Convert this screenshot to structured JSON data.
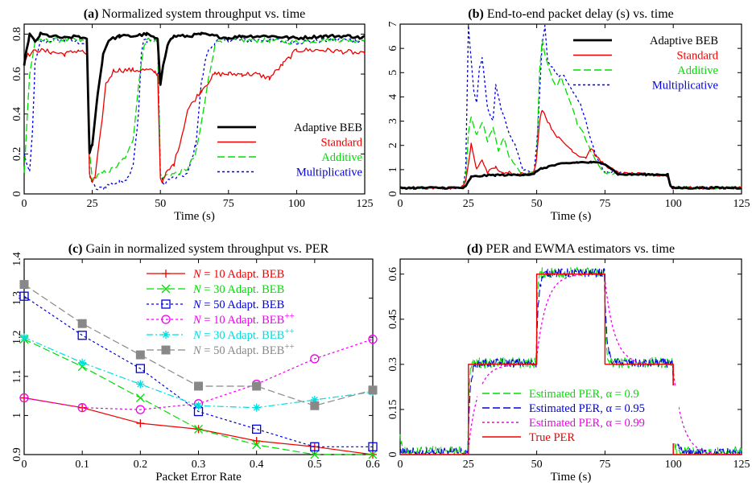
{
  "panels": {
    "a": {
      "label": "(a)",
      "title": "Normalized system throughput vs. time",
      "xlabel": "Time (s)",
      "ylabel": "",
      "xlim": [
        0,
        125
      ],
      "ylim": [
        0,
        0.85
      ],
      "xticks": [
        "0",
        "25",
        "50",
        "75",
        "100",
        "125"
      ],
      "yticks": [
        "0",
        "0.2",
        "0.4",
        "0.6",
        "0.8"
      ],
      "legend_position": "lower-right"
    },
    "b": {
      "label": "(b)",
      "title": "End-to-end packet delay (s) vs. time",
      "xlabel": "Time (s)",
      "ylabel": "",
      "xlim": [
        0,
        125
      ],
      "ylim": [
        0,
        7
      ],
      "xticks": [
        "0",
        "25",
        "50",
        "75",
        "100",
        "125"
      ],
      "yticks": [
        "0",
        "1",
        "2",
        "3",
        "4",
        "5",
        "6",
        "7"
      ],
      "legend_position": "top-right"
    },
    "c": {
      "label": "(c)",
      "title": "Gain in normalized system throughput vs. PER",
      "xlabel": "Packet Error Rate",
      "ylabel": "",
      "xlim": [
        0,
        0.6
      ],
      "ylim": [
        0.9,
        1.4
      ],
      "xticks": [
        "0",
        "0.1",
        "0.2",
        "0.3",
        "0.4",
        "0.5",
        "0.6"
      ],
      "yticks": [
        "0.9",
        "1",
        "1.1",
        "1.2",
        "1.3",
        "1.4"
      ],
      "legend_position": "top-center"
    },
    "d": {
      "label": "(d)",
      "title": "PER and EWMA estimators vs. time",
      "xlabel": "Time (s)",
      "ylabel": "",
      "xlim": [
        0,
        125
      ],
      "ylim": [
        0,
        0.65
      ],
      "xticks": [
        "0",
        "25",
        "50",
        "75",
        "100",
        "125"
      ],
      "yticks": [
        "0",
        "0.15",
        "0.3",
        "0.45",
        "0.6"
      ],
      "legend_position": "lower-center"
    }
  },
  "chart_data": [
    {
      "panel": "a",
      "type": "line",
      "title": "(a) Normalized system throughput vs. time",
      "xlabel": "Time (s)",
      "xlim": [
        0,
        125
      ],
      "ylim": [
        0,
        0.85
      ],
      "series": [
        {
          "name": "Adaptive BEB",
          "color": "#000000",
          "dash": "solid",
          "x": [
            0,
            2,
            4,
            6,
            10,
            15,
            20,
            23,
            24,
            25,
            27,
            29,
            31,
            35,
            40,
            45,
            48,
            49,
            50,
            51,
            53,
            55,
            60,
            65,
            70,
            75,
            80,
            90,
            100,
            110,
            120,
            124,
            125
          ],
          "y": [
            0.65,
            0.8,
            0.76,
            0.8,
            0.79,
            0.78,
            0.79,
            0.77,
            0.2,
            0.25,
            0.5,
            0.7,
            0.77,
            0.79,
            0.79,
            0.8,
            0.78,
            0.77,
            0.55,
            0.65,
            0.76,
            0.79,
            0.79,
            0.8,
            0.79,
            0.78,
            0.79,
            0.79,
            0.78,
            0.79,
            0.79,
            0.78,
            0.79
          ]
        },
        {
          "name": "Standard",
          "color": "#ee0000",
          "dash": "solid",
          "x": [
            0,
            2,
            5,
            10,
            15,
            20,
            23,
            24,
            25,
            26,
            28,
            30,
            33,
            35,
            40,
            45,
            48,
            49,
            50,
            51,
            52,
            55,
            58,
            60,
            65,
            70,
            75,
            80,
            85,
            90,
            95,
            100,
            110,
            120,
            124,
            125
          ],
          "y": [
            0.68,
            0.7,
            0.72,
            0.71,
            0.7,
            0.72,
            0.7,
            0.1,
            0.06,
            0.08,
            0.3,
            0.55,
            0.62,
            0.62,
            0.62,
            0.62,
            0.61,
            0.6,
            0.08,
            0.06,
            0.1,
            0.15,
            0.3,
            0.42,
            0.52,
            0.6,
            0.6,
            0.6,
            0.6,
            0.58,
            0.65,
            0.72,
            0.72,
            0.71,
            0.7,
            0.7
          ]
        },
        {
          "name": "Additive",
          "color": "#00dd00",
          "dash": "dashed",
          "x": [
            0,
            2,
            4,
            10,
            15,
            20,
            23,
            24,
            25,
            28,
            32,
            35,
            38,
            40,
            42,
            44,
            45,
            48,
            49,
            50,
            51,
            53,
            55,
            58,
            60,
            63,
            65,
            68,
            70,
            72,
            75,
            90,
            100,
            110,
            120,
            124,
            125
          ],
          "y": [
            0.1,
            0.6,
            0.76,
            0.77,
            0.77,
            0.77,
            0.76,
            0.2,
            0.07,
            0.1,
            0.12,
            0.15,
            0.2,
            0.28,
            0.55,
            0.75,
            0.77,
            0.77,
            0.76,
            0.1,
            0.08,
            0.1,
            0.1,
            0.11,
            0.13,
            0.2,
            0.35,
            0.6,
            0.75,
            0.77,
            0.77,
            0.77,
            0.76,
            0.77,
            0.77,
            0.77,
            0.77
          ]
        },
        {
          "name": "Multiplicative",
          "color": "#0000dd",
          "dash": "dotted",
          "x": [
            0,
            2,
            3,
            4,
            6,
            10,
            15,
            20,
            23,
            24,
            25,
            27,
            30,
            35,
            38,
            40,
            42,
            43,
            44,
            45,
            48,
            49,
            50,
            51,
            53,
            55,
            60,
            63,
            65,
            67,
            70,
            72,
            75,
            90,
            100,
            110,
            120,
            124,
            125
          ],
          "y": [
            0.2,
            0.1,
            0.3,
            0.65,
            0.76,
            0.77,
            0.77,
            0.76,
            0.75,
            0.1,
            0.05,
            0.02,
            0.04,
            0.06,
            0.08,
            0.15,
            0.4,
            0.7,
            0.77,
            0.77,
            0.77,
            0.76,
            0.1,
            0.05,
            0.07,
            0.08,
            0.1,
            0.25,
            0.55,
            0.7,
            0.76,
            0.77,
            0.77,
            0.77,
            0.76,
            0.77,
            0.77,
            0.77,
            0.77
          ]
        }
      ]
    },
    {
      "panel": "b",
      "type": "line",
      "title": "(b) End-to-end packet delay (s) vs. time",
      "xlabel": "Time (s)",
      "xlim": [
        0,
        125
      ],
      "ylim": [
        0,
        7
      ],
      "series": [
        {
          "name": "Adaptive BEB",
          "color": "#000000",
          "dash": "solid",
          "x": [
            0,
            10,
            20,
            23,
            24,
            25,
            26,
            30,
            35,
            40,
            45,
            48,
            49,
            50,
            52,
            55,
            60,
            65,
            70,
            75,
            80,
            90,
            98,
            99,
            100,
            110,
            120,
            125
          ],
          "y": [
            0.25,
            0.25,
            0.25,
            0.25,
            0.3,
            0.5,
            0.7,
            0.75,
            0.78,
            0.78,
            0.8,
            0.8,
            0.8,
            0.95,
            1.05,
            1.15,
            1.25,
            1.3,
            1.3,
            1.25,
            0.8,
            0.8,
            0.8,
            0.3,
            0.25,
            0.25,
            0.25,
            0.25
          ]
        },
        {
          "name": "Standard",
          "color": "#ee0000",
          "dash": "solid",
          "x": [
            0,
            10,
            20,
            23,
            24,
            25,
            26,
            27,
            28,
            30,
            32,
            35,
            38,
            40,
            43,
            45,
            48,
            49,
            50,
            51,
            52,
            54,
            56,
            58,
            60,
            63,
            65,
            68,
            70,
            72,
            75,
            80,
            90,
            98,
            99,
            100,
            110,
            120,
            125
          ],
          "y": [
            0.25,
            0.25,
            0.25,
            0.3,
            0.5,
            1.2,
            2.1,
            1.5,
            1.0,
            1.4,
            0.9,
            1.1,
            0.8,
            0.9,
            0.8,
            0.9,
            0.8,
            0.9,
            1.5,
            3.0,
            3.5,
            3.0,
            2.6,
            2.3,
            2.1,
            1.8,
            1.6,
            1.5,
            1.9,
            1.5,
            1.2,
            0.85,
            0.8,
            0.75,
            0.3,
            0.25,
            0.25,
            0.25,
            0.25
          ]
        },
        {
          "name": "Additive",
          "color": "#00dd00",
          "dash": "dashed",
          "x": [
            0,
            10,
            20,
            23,
            24,
            25,
            26,
            27,
            28,
            30,
            32,
            34,
            36,
            38,
            40,
            42,
            45,
            48,
            49,
            50,
            51,
            52,
            53,
            55,
            57,
            59,
            61,
            63,
            65,
            67,
            70,
            72,
            75,
            80,
            90,
            98,
            99,
            100,
            110,
            120,
            125
          ],
          "y": [
            0.25,
            0.25,
            0.25,
            0.3,
            0.6,
            2.5,
            3.2,
            2.8,
            2.4,
            3.0,
            2.2,
            2.7,
            1.8,
            2.3,
            1.5,
            1.2,
            0.8,
            0.85,
            0.9,
            1.5,
            5.0,
            6.4,
            5.7,
            5.0,
            4.4,
            4.8,
            4.2,
            3.6,
            2.8,
            2.5,
            1.7,
            1.3,
            0.85,
            0.85,
            0.8,
            0.75,
            0.3,
            0.25,
            0.25,
            0.25,
            0.25
          ]
        },
        {
          "name": "Multiplicative",
          "color": "#0000dd",
          "dash": "dotted",
          "x": [
            0,
            10,
            20,
            23,
            24,
            25,
            26,
            27,
            28,
            29,
            30,
            31,
            32,
            34,
            35,
            37,
            40,
            42,
            45,
            48,
            49,
            50,
            51,
            52,
            53,
            54,
            56,
            58,
            60,
            62,
            64,
            66,
            68,
            70,
            72,
            75,
            80,
            90,
            98,
            99,
            100,
            110,
            120,
            125
          ],
          "y": [
            0.25,
            0.25,
            0.25,
            0.3,
            1.0,
            6.9,
            5.5,
            4.2,
            3.8,
            5.2,
            5.6,
            4.6,
            3.5,
            3.0,
            4.5,
            3.5,
            2.5,
            2.0,
            1.0,
            0.85,
            0.9,
            2.0,
            4.0,
            6.2,
            6.9,
            5.5,
            5.2,
            4.8,
            4.9,
            4.5,
            4.1,
            3.7,
            3.0,
            2.2,
            1.5,
            0.9,
            0.85,
            0.8,
            0.75,
            0.3,
            0.25,
            0.25,
            0.25,
            0.25
          ]
        }
      ]
    },
    {
      "panel": "c",
      "type": "line",
      "title": "(c) Gain in normalized system throughput vs. PER",
      "xlabel": "Packet Error Rate",
      "xlim": [
        0,
        0.6
      ],
      "ylim": [
        0.9,
        1.4
      ],
      "x": [
        0,
        0.1,
        0.2,
        0.3,
        0.4,
        0.5,
        0.6
      ],
      "series": [
        {
          "name": "N = 10 Adapt. BEB",
          "color": "#ee0000",
          "dash": "solid",
          "marker": "plus",
          "values": [
            1.045,
            1.02,
            0.98,
            0.965,
            0.935,
            0.92,
            0.9
          ]
        },
        {
          "name": "N = 30 Adapt. BEB",
          "color": "#00dd00",
          "dash": "dashed",
          "marker": "x",
          "values": [
            1.195,
            1.125,
            1.045,
            0.965,
            0.925,
            0.9,
            0.9
          ]
        },
        {
          "name": "N = 50 Adapt. BEB",
          "color": "#0000dd",
          "dash": "dotted",
          "marker": "square",
          "values": [
            1.305,
            1.205,
            1.12,
            1.01,
            0.965,
            0.92,
            0.92
          ]
        },
        {
          "name": "N = 10 Adapt. BEB++",
          "color": "#ee00ee",
          "dash": "dotted",
          "marker": "circle",
          "values": [
            1.045,
            1.02,
            1.015,
            1.03,
            1.08,
            1.145,
            1.195
          ]
        },
        {
          "name": "N = 30 Adapt. BEB++",
          "color": "#00dddd",
          "dash": "dashdot",
          "marker": "star",
          "values": [
            1.2,
            1.135,
            1.08,
            1.025,
            1.02,
            1.04,
            1.06
          ]
        },
        {
          "name": "N = 50 Adapt. BEB++",
          "color": "#888888",
          "dash": "dashed",
          "marker": "filledsquare",
          "values": [
            1.335,
            1.235,
            1.155,
            1.075,
            1.075,
            1.025,
            1.065
          ]
        }
      ]
    },
    {
      "panel": "d",
      "type": "line",
      "title": "(d) PER and EWMA estimators vs. time",
      "xlabel": "Time (s)",
      "xlim": [
        0,
        125
      ],
      "ylim": [
        0,
        0.65
      ],
      "series": [
        {
          "name": "Estimated PER, α = 0.9",
          "color": "#00dd00",
          "dash": "dashed"
        },
        {
          "name": "Estimated PER, α = 0.95",
          "color": "#0000dd",
          "dash": "dashed"
        },
        {
          "name": "Estimated PER, α = 0.99",
          "color": "#ee00ee",
          "dash": "dotted"
        },
        {
          "name": "True PER",
          "color": "#ee0000",
          "dash": "solid",
          "x": [
            0,
            25,
            25,
            50,
            50,
            75,
            75,
            100,
            100,
            125
          ],
          "y": [
            0,
            0,
            0.3,
            0.3,
            0.6,
            0.6,
            0.3,
            0.3,
            0,
            0
          ]
        }
      ]
    }
  ]
}
